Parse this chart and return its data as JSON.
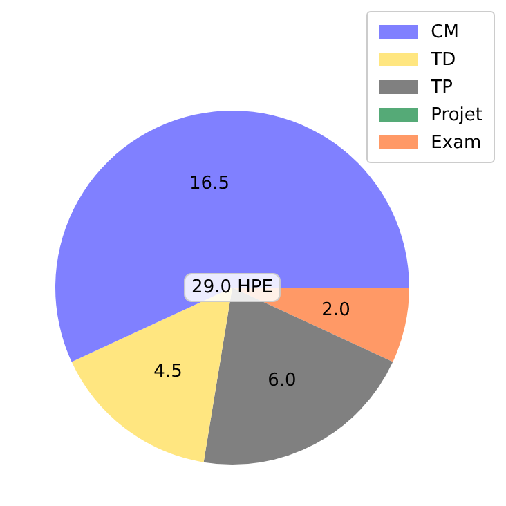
{
  "chart_data": {
    "type": "pie",
    "categories": [
      "CM",
      "TD",
      "TP",
      "Projet",
      "Exam"
    ],
    "values": [
      16.5,
      4.5,
      6.0,
      0,
      2.0
    ],
    "colors": [
      "#8080ff",
      "#ffe680",
      "#808080",
      "#55aa77",
      "#ff9966"
    ],
    "value_labels": [
      "16.5",
      "4.5",
      "6.0",
      null,
      "2.0"
    ],
    "annotations": [
      "29.0 HPE"
    ],
    "legend": "top right"
  }
}
